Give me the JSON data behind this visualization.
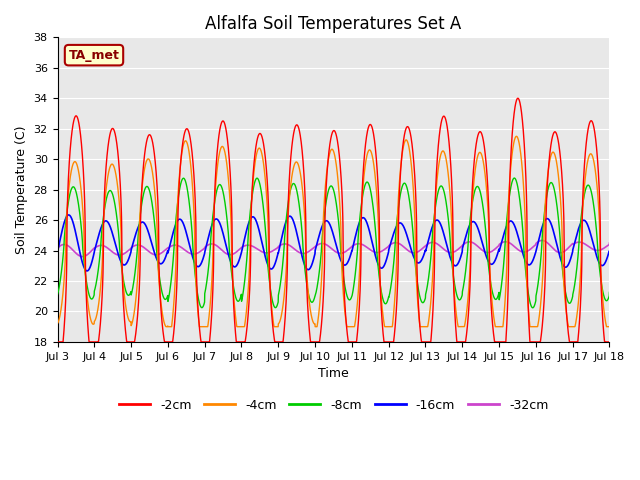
{
  "title": "Alfalfa Soil Temperatures Set A",
  "xlabel": "Time",
  "ylabel": "Soil Temperature (C)",
  "ylim": [
    18,
    38
  ],
  "xlim": [
    0,
    15
  ],
  "x_tick_labels": [
    "Jul 3",
    "Jul 4",
    "Jul 5",
    "Jul 6",
    "Jul 7",
    "Jul 8",
    "Jul 9",
    "Jul 10",
    "Jul 11",
    "Jul 12",
    "Jul 13",
    "Jul 14",
    "Jul 15",
    "Jul 16",
    "Jul 17",
    "Jul 18"
  ],
  "colors": {
    "-2cm": "#ff0000",
    "-4cm": "#ff8800",
    "-8cm": "#00cc00",
    "-16cm": "#0000ff",
    "-32cm": "#cc44cc"
  },
  "legend_labels": [
    "-2cm",
    "-4cm",
    "-8cm",
    "-16cm",
    "-32cm"
  ],
  "annotation_text": "TA_met",
  "background_color": "#e8e8e8",
  "grid_color": "#ffffff",
  "title_fontsize": 12,
  "axis_fontsize": 9,
  "tick_fontsize": 8,
  "legend_fontsize": 9,
  "figsize": [
    6.4,
    4.8
  ],
  "dpi": 100
}
